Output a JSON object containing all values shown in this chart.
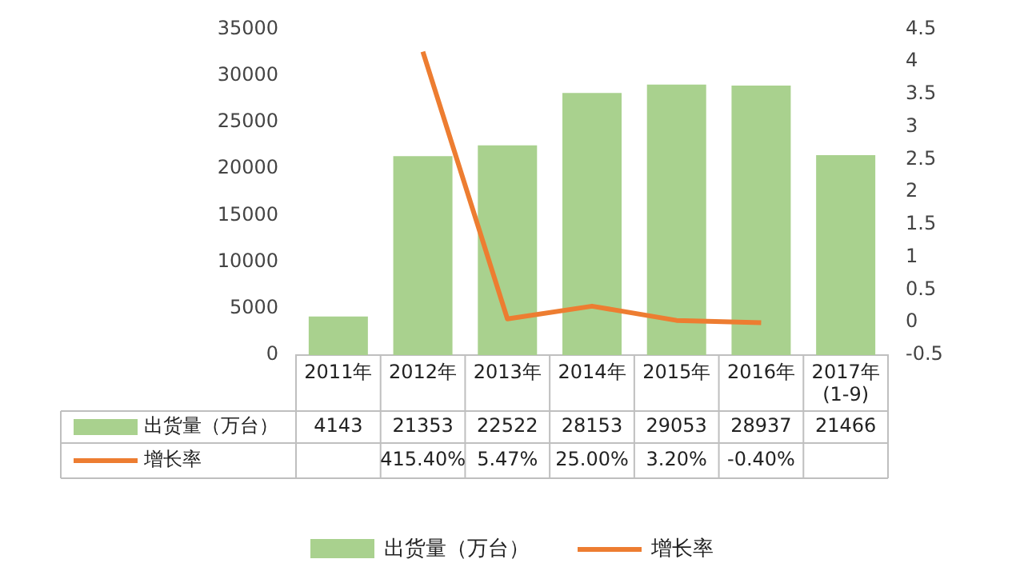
{
  "chart_data": {
    "type": "bar",
    "categories": [
      "2011年",
      "2012年",
      "2013年",
      "2014年",
      "2015年",
      "2016年",
      "2017年\n(1-9)"
    ],
    "series": [
      {
        "name": "出货量（万台）",
        "color": "#a9d18e",
        "values": [
          4143,
          21353,
          22522,
          28153,
          29053,
          28937,
          21466
        ],
        "value_labels": [
          "4143",
          "21353",
          "22522",
          "28153",
          "29053",
          "28937",
          "21466"
        ]
      },
      {
        "name": "增长率",
        "type": "line",
        "axis": "y2",
        "color": "#ed7d31",
        "values": [
          null,
          4.154,
          0.0547,
          0.25,
          0.032,
          -0.004,
          null
        ],
        "value_labels": [
          null,
          "415.40%",
          "5.47%",
          "25.00%",
          "3.20%",
          "-0.40%",
          null
        ]
      }
    ],
    "ylim": [
      0,
      35000
    ],
    "yticks": [
      0,
      5000,
      10000,
      15000,
      20000,
      25000,
      30000,
      35000
    ],
    "y2lim": [
      -0.5,
      4.5
    ],
    "y2ticks": [
      -0.5,
      0,
      0.5,
      1,
      1.5,
      2,
      2.5,
      3,
      3.5,
      4,
      4.5
    ],
    "grid": false,
    "legend": "bottom",
    "marker": "none",
    "line_style": "solid"
  }
}
